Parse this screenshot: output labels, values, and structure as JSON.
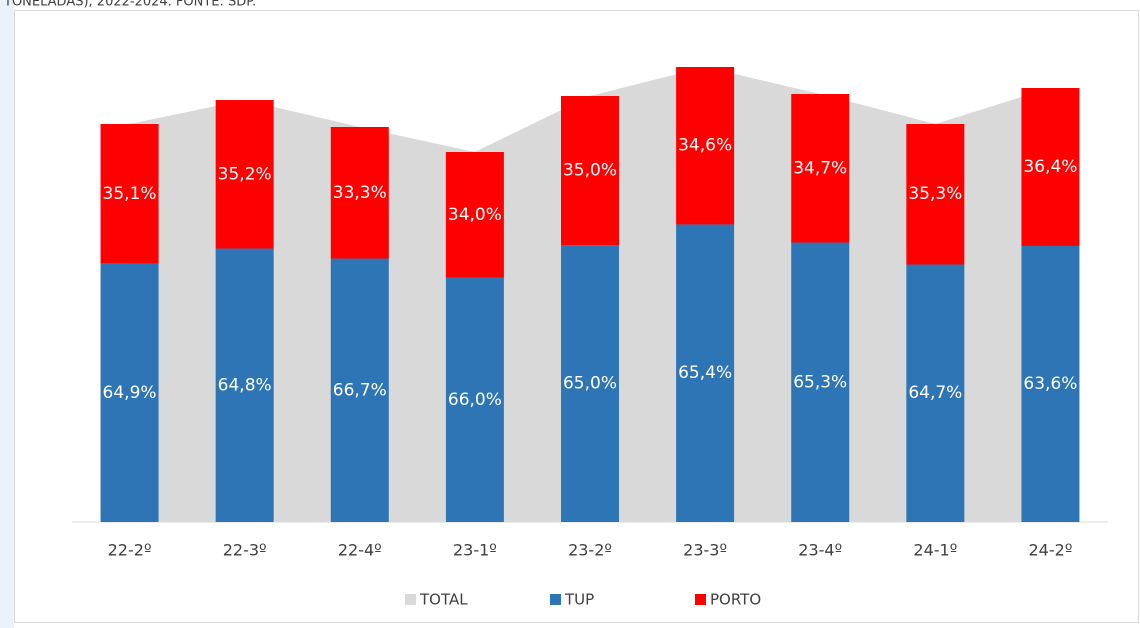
{
  "chart_data": {
    "type": "stacked_bar_area",
    "title": "TONELADAS), 2022-2024. FONTE: SDP.",
    "categories": [
      "22-2º",
      "22-3º",
      "22-4º",
      "23-1º",
      "23-2º",
      "23-3º",
      "23-4º",
      "24-1º",
      "24-2º"
    ],
    "series": [
      {
        "name": "TOTAL",
        "color": "#d9d9d9",
        "values": [
          398,
          422,
          395,
          370,
          426,
          455,
          428,
          398,
          434
        ]
      },
      {
        "name": "TUP",
        "color": "#2e75b6",
        "values": [
          64.9,
          64.8,
          66.7,
          66.0,
          65.0,
          65.4,
          65.3,
          64.7,
          63.6
        ],
        "value_labels": [
          "64,9%",
          "64,8%",
          "66,7%",
          "66,0%",
          "65,0%",
          "65,4%",
          "65,3%",
          "64,7%",
          "63,6%"
        ]
      },
      {
        "name": "PORTO",
        "color": "#ff0000",
        "values": [
          35.1,
          35.2,
          33.3,
          34.0,
          35.0,
          34.6,
          34.7,
          35.3,
          36.4
        ],
        "value_labels": [
          "35,1%",
          "35,2%",
          "33,3%",
          "34,0%",
          "35,0%",
          "34,6%",
          "34,7%",
          "35,3%",
          "36,4%"
        ]
      }
    ]
  }
}
